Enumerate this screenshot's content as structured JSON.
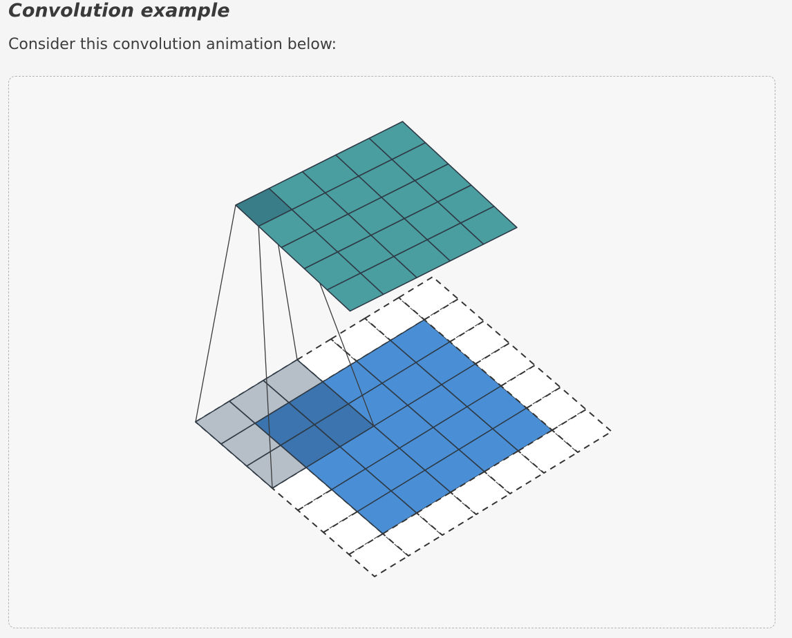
{
  "heading": {
    "title": "Convolution example",
    "text": "Consider this convolution animation below:"
  },
  "figure": {
    "input": {
      "cells": 5,
      "padding": 1,
      "color": "#4a8fd6",
      "padding_color": "#ffffff"
    },
    "kernel": {
      "cells": 3,
      "position": [
        0,
        0
      ],
      "color": "#a9b3bd"
    },
    "output": {
      "cells": 5,
      "highlight": [
        0,
        0
      ],
      "color": "#4a9ea0",
      "highlight_color": "#397d88"
    },
    "line_color": "#2e3a46"
  }
}
